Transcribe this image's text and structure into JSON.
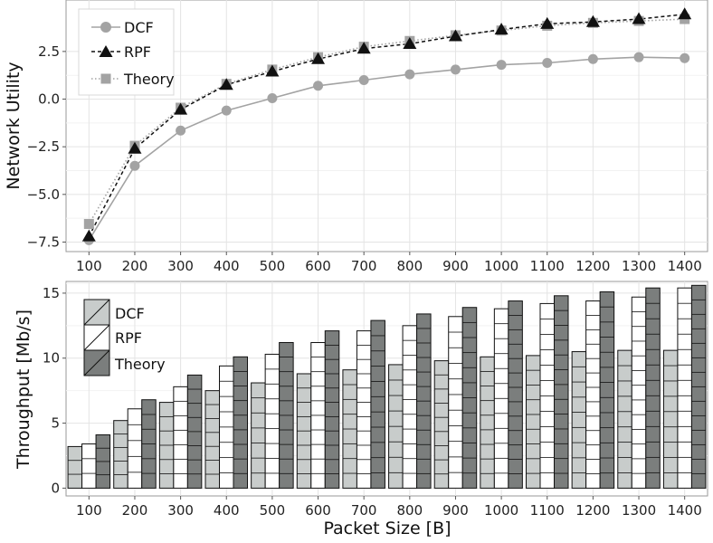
{
  "chart_data": [
    {
      "type": "line",
      "xlabel": "",
      "ylabel": "Network Utility",
      "x": [
        100,
        200,
        300,
        400,
        500,
        600,
        700,
        800,
        900,
        1000,
        1100,
        1200,
        1300,
        1400
      ],
      "xtick_labels": [
        "100",
        "200",
        "300",
        "400",
        "500",
        "600",
        "700",
        "800",
        "900",
        "1000",
        "1100",
        "1200",
        "1300",
        "1400"
      ],
      "ylim": [
        -8,
        5.2
      ],
      "yticks": [
        -7.5,
        -5.0,
        -2.5,
        0.0,
        2.5
      ],
      "ytick_labels": [
        "−7.5",
        "−5.0",
        "−2.5",
        "0.0",
        "2.5"
      ],
      "grid": true,
      "legend_position": "top-left",
      "series": [
        {
          "name": "DCF",
          "marker": "circle",
          "line": "solid",
          "color": "#a3a3a3",
          "values": [
            -7.4,
            -3.5,
            -1.65,
            -0.6,
            0.05,
            0.7,
            1.0,
            1.3,
            1.55,
            1.8,
            1.9,
            2.1,
            2.2,
            2.15
          ]
        },
        {
          "name": "RPF",
          "marker": "triangle",
          "line": "dashed",
          "color": "#111111",
          "values": [
            -7.2,
            -2.6,
            -0.55,
            0.75,
            1.45,
            2.1,
            2.65,
            2.9,
            3.3,
            3.65,
            3.95,
            4.05,
            4.2,
            4.45
          ]
        },
        {
          "name": "Theory",
          "marker": "square",
          "line": "dotted",
          "color": "#a3a3a3",
          "values": [
            -6.55,
            -2.45,
            -0.45,
            0.8,
            1.55,
            2.2,
            2.75,
            3.05,
            3.35,
            3.6,
            3.85,
            4.0,
            4.1,
            4.2
          ]
        }
      ]
    },
    {
      "type": "bar",
      "xlabel": "Packet Size [B]",
      "ylabel": "Throughput [Mb/s]",
      "categories": [
        "100",
        "200",
        "300",
        "400",
        "500",
        "600",
        "700",
        "800",
        "900",
        "1000",
        "1100",
        "1200",
        "1300",
        "1400"
      ],
      "ylim": [
        -0.6,
        15.9
      ],
      "yticks": [
        0,
        5,
        10,
        15
      ],
      "ytick_labels": [
        "0",
        "5",
        "10",
        "15"
      ],
      "grid": true,
      "legend_position": "top-left",
      "series": [
        {
          "name": "DCF",
          "color": "#c8cccb",
          "values": [
            3.2,
            5.2,
            6.6,
            7.5,
            8.1,
            8.8,
            9.1,
            9.5,
            9.8,
            10.1,
            10.2,
            10.5,
            10.6,
            10.6
          ]
        },
        {
          "name": "RPF",
          "color": "#ffffff",
          "values": [
            3.4,
            6.1,
            7.8,
            9.4,
            10.3,
            11.2,
            12.1,
            12.5,
            13.2,
            13.8,
            14.2,
            14.4,
            14.7,
            15.4
          ]
        },
        {
          "name": "Theory",
          "color": "#7b7e7d",
          "values": [
            4.1,
            6.8,
            8.7,
            10.1,
            11.2,
            12.1,
            12.9,
            13.4,
            13.9,
            14.4,
            14.8,
            15.1,
            15.4,
            15.6
          ]
        }
      ]
    }
  ]
}
